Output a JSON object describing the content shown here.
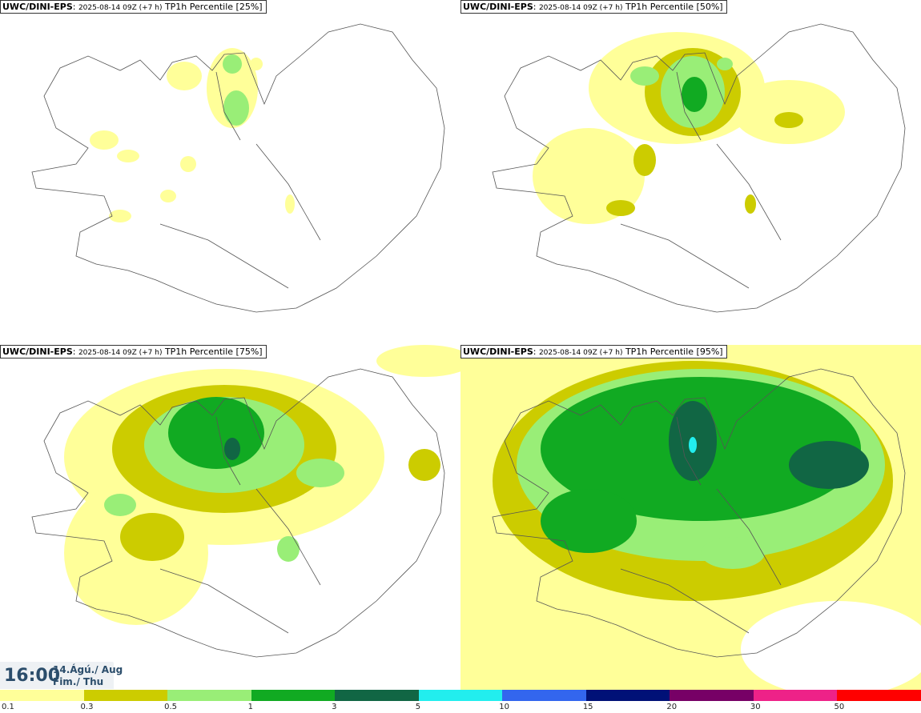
{
  "model": "UWC/DINI-EPS",
  "run": "2025-08-14 09Z (+7 h)",
  "variable": "TP1h",
  "panels": [
    {
      "percentile_label": "Percentile [25%]",
      "percentile": 25
    },
    {
      "percentile_label": "Percentile [50%]",
      "percentile": 50
    },
    {
      "percentile_label": "Percentile [75%]",
      "percentile": 75
    },
    {
      "percentile_label": "Percentile [95%]",
      "percentile": 95
    }
  ],
  "time": {
    "clock": "16:00",
    "date": "14.Ágú./ Aug",
    "weekday": "Fim./ Thu"
  },
  "legend": {
    "ticks": [
      "0.1",
      "0.3",
      "0.5",
      "1",
      "3",
      "5",
      "10",
      "15",
      "20",
      "30",
      "50"
    ],
    "colors": [
      "#ffff99",
      "#cccc00",
      "#99ee77",
      "#11aa22",
      "#116644",
      "#22eeee",
      "#3366ee",
      "#001177",
      "#770066",
      "#ee2288",
      "#ff0000"
    ]
  },
  "colors": {
    "border": "#333333",
    "coast": "#555555",
    "timebox_text": "#2b4d6b"
  }
}
